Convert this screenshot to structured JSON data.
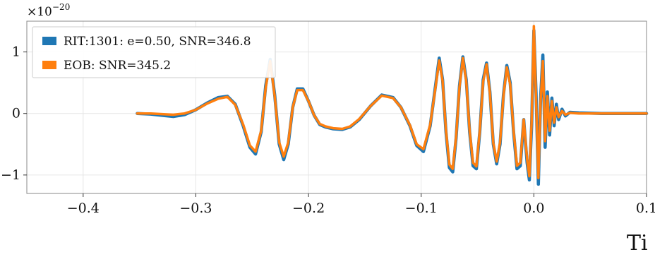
{
  "chart_data": {
    "type": "line",
    "xlabel": "Ti",
    "ylabel": "",
    "y_scale_note": "×10",
    "y_scale_exponent": "−20",
    "xlim": [
      -0.45,
      0.1
    ],
    "ylim": [
      -1.3,
      1.5
    ],
    "x_ticks": [
      -0.4,
      -0.3,
      -0.2,
      -0.1,
      0.0,
      0.1
    ],
    "x_tick_labels": [
      "−0.4",
      "−0.3",
      "−0.2",
      "−0.1",
      "0.0",
      "0.1"
    ],
    "y_ticks": [
      -1,
      0,
      1
    ],
    "y_tick_labels": [
      "−1",
      "0",
      "1"
    ],
    "grid": true,
    "legend_position": "top-left",
    "series": [
      {
        "name": "RIT:1301: e=0.50, SNR=346.8",
        "color": "#1f77b4",
        "x": [
          -0.352,
          -0.34,
          -0.33,
          -0.32,
          -0.31,
          -0.3,
          -0.29,
          -0.28,
          -0.272,
          -0.265,
          -0.258,
          -0.252,
          -0.247,
          -0.242,
          -0.238,
          -0.234,
          -0.23,
          -0.226,
          -0.222,
          -0.218,
          -0.214,
          -0.21,
          -0.205,
          -0.2,
          -0.195,
          -0.19,
          -0.185,
          -0.178,
          -0.17,
          -0.163,
          -0.155,
          -0.145,
          -0.135,
          -0.125,
          -0.118,
          -0.11,
          -0.104,
          -0.098,
          -0.092,
          -0.088,
          -0.084,
          -0.081,
          -0.078,
          -0.075,
          -0.072,
          -0.069,
          -0.066,
          -0.063,
          -0.06,
          -0.057,
          -0.054,
          -0.051,
          -0.048,
          -0.045,
          -0.042,
          -0.039,
          -0.036,
          -0.033,
          -0.03,
          -0.027,
          -0.024,
          -0.021,
          -0.018,
          -0.015,
          -0.012,
          -0.009,
          -0.006,
          -0.004,
          -0.002,
          0.0,
          0.002,
          0.004,
          0.006,
          0.008,
          0.01,
          0.012,
          0.014,
          0.016,
          0.018,
          0.02,
          0.022,
          0.025,
          0.028,
          0.032,
          0.04,
          0.06,
          0.08,
          0.1
        ],
        "y": [
          0.0,
          -0.01,
          -0.03,
          -0.05,
          -0.02,
          0.06,
          0.17,
          0.26,
          0.28,
          0.15,
          -0.2,
          -0.55,
          -0.66,
          -0.3,
          0.45,
          0.88,
          0.3,
          -0.5,
          -0.75,
          -0.5,
          0.1,
          0.4,
          0.4,
          0.2,
          -0.03,
          -0.18,
          -0.22,
          -0.25,
          -0.26,
          -0.22,
          -0.1,
          0.12,
          0.3,
          0.26,
          0.1,
          -0.2,
          -0.52,
          -0.62,
          -0.2,
          0.35,
          0.9,
          0.55,
          -0.3,
          -0.88,
          -0.95,
          -0.4,
          0.45,
          0.92,
          0.55,
          -0.3,
          -0.85,
          -0.9,
          -0.3,
          0.55,
          0.82,
          0.35,
          -0.5,
          -0.82,
          -0.5,
          0.3,
          0.78,
          0.5,
          -0.3,
          -0.9,
          -0.85,
          -0.1,
          -0.8,
          -1.08,
          -0.2,
          1.35,
          0.3,
          -1.15,
          0.25,
          0.95,
          -0.55,
          0.35,
          -0.35,
          0.25,
          -0.2,
          0.15,
          -0.1,
          0.07,
          -0.04,
          0.02,
          0.01,
          0.0,
          0.0,
          0.0
        ]
      },
      {
        "name": "EOB: SNR=345.2",
        "color": "#ff7f0e",
        "x": [
          -0.352,
          -0.34,
          -0.33,
          -0.32,
          -0.31,
          -0.3,
          -0.29,
          -0.28,
          -0.272,
          -0.265,
          -0.258,
          -0.252,
          -0.247,
          -0.242,
          -0.238,
          -0.234,
          -0.23,
          -0.226,
          -0.222,
          -0.218,
          -0.214,
          -0.21,
          -0.205,
          -0.2,
          -0.195,
          -0.19,
          -0.185,
          -0.178,
          -0.17,
          -0.163,
          -0.155,
          -0.145,
          -0.135,
          -0.125,
          -0.118,
          -0.11,
          -0.104,
          -0.098,
          -0.092,
          -0.088,
          -0.084,
          -0.081,
          -0.078,
          -0.075,
          -0.072,
          -0.069,
          -0.066,
          -0.063,
          -0.06,
          -0.057,
          -0.054,
          -0.051,
          -0.048,
          -0.045,
          -0.042,
          -0.039,
          -0.036,
          -0.033,
          -0.03,
          -0.027,
          -0.024,
          -0.021,
          -0.018,
          -0.015,
          -0.012,
          -0.009,
          -0.006,
          -0.004,
          -0.002,
          0.0,
          0.002,
          0.004,
          0.006,
          0.008,
          0.01,
          0.012,
          0.014,
          0.016,
          0.018,
          0.02,
          0.022,
          0.025,
          0.028,
          0.032,
          0.04,
          0.06,
          0.08,
          0.1
        ],
        "y": [
          0.0,
          0.0,
          -0.01,
          -0.02,
          0.0,
          0.06,
          0.16,
          0.24,
          0.27,
          0.14,
          -0.18,
          -0.52,
          -0.62,
          -0.28,
          0.42,
          0.85,
          0.28,
          -0.47,
          -0.7,
          -0.47,
          0.1,
          0.38,
          0.38,
          0.2,
          -0.03,
          -0.17,
          -0.21,
          -0.24,
          -0.25,
          -0.21,
          -0.09,
          0.12,
          0.29,
          0.25,
          0.1,
          -0.19,
          -0.5,
          -0.58,
          -0.18,
          0.33,
          0.86,
          0.53,
          -0.28,
          -0.83,
          -0.9,
          -0.38,
          0.43,
          0.9,
          0.52,
          -0.28,
          -0.8,
          -0.86,
          -0.28,
          0.52,
          0.8,
          0.33,
          -0.48,
          -0.78,
          -0.47,
          0.28,
          0.75,
          0.47,
          -0.28,
          -0.85,
          -0.8,
          -0.1,
          -0.75,
          -1.02,
          -0.15,
          1.42,
          0.2,
          -1.05,
          0.2,
          0.85,
          -0.45,
          0.28,
          -0.28,
          0.2,
          -0.15,
          0.1,
          -0.06,
          0.04,
          -0.02,
          0.01,
          0.0,
          0.0,
          0.0,
          0.0
        ]
      }
    ]
  }
}
